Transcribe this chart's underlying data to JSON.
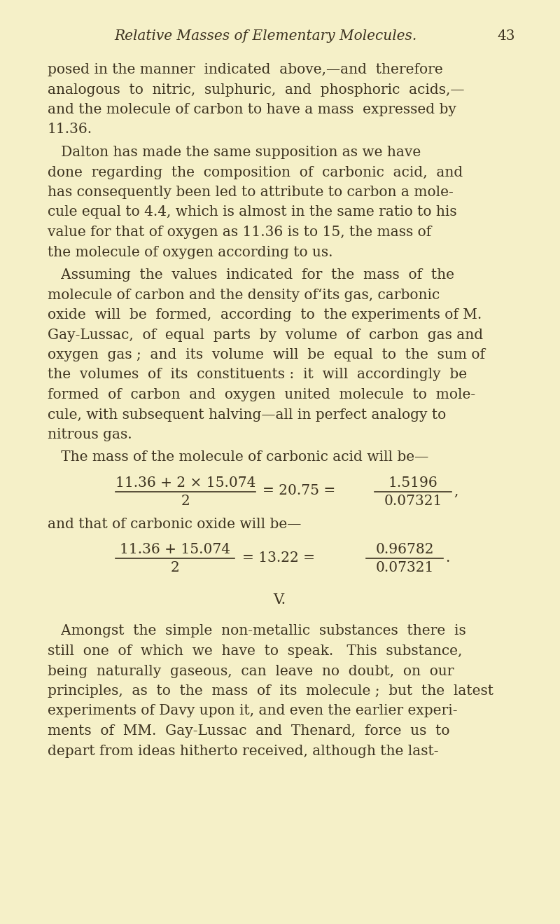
{
  "bg_color": "#f5f0c8",
  "text_color": "#3d3320",
  "page_width": 8.0,
  "page_height": 13.19,
  "dpi": 100,
  "header_italic": "Relative Masses of Elementary Molecules.",
  "header_page_num": "43",
  "body_fontsize": 14.5,
  "header_fontsize": 14.5,
  "formula_fontsize": 14.5,
  "section_fontsize": 15,
  "para1_lines": [
    "posed in the manner  indicated  above,—and  therefore",
    "analogous  to  nitric,  sulphuric,  and  phosphoric  acids,—",
    "and the molecule of carbon to have a mass  expressed by",
    "11.36."
  ],
  "para2_lines": [
    "   Dalton has made the same supposition as we have",
    "done  regarding  the  composition  of  carbonic  acid,  and",
    "has consequently been led to attribute to carbon a mole-",
    "cule equal to 4.4, which is almost in the same ratio to his",
    "value for that of oxygen as 11.36 is to 15, the mass of",
    "the molecule of oxygen according to us."
  ],
  "para3_lines": [
    "   Assuming  the  values  indicated  for  the  mass  of  the",
    "molecule of carbon and the density ofʻits gas, carbonic",
    "oxide  will  be  formed,  according  to  the experiments of M.",
    "Gay-Lussac,  of  equal  parts  by  volume  of  carbon  gas and",
    "oxygen  gas ;  and  its  volume  will  be  equal  to  the  sum of",
    "the  volumes  of  its  constituents :  it  will  accordingly  be",
    "formed  of  carbon  and  oxygen  united  molecule  to  mole-",
    "cule, with subsequent halving—all in perfect analogy to",
    "nitrous gas."
  ],
  "para4_intro": "   The mass of the molecule of carbonic acid will be—",
  "formula1_num": "11.36 + 2 × 15.074",
  "formula1_den": "2",
  "formula1_mid": "= 20.75 =",
  "formula1_rnum": "1.5196",
  "formula1_rden": "0.07321",
  "formula1_end": ",",
  "after_formula1": "and that of carbonic oxide will be—",
  "formula2_num": "11.36 + 15.074",
  "formula2_den": "2",
  "formula2_mid": "= 13.22 =",
  "formula2_rnum": "0.96782",
  "formula2_rden": "0.07321",
  "formula2_end": ".",
  "section_v": "V.",
  "last_para_lines": [
    "   Amongst  the  simple  non-metallic  substances  there  is",
    "still  one  of  which  we  have  to  speak.   This  substance,",
    "being  naturally  gaseous,  can  leave  no  doubt,  on  our",
    "principles,  as  to  the  mass  of  its  molecule ;  but  the  latest",
    "experiments of Davy upon it, and even the earlier experi-",
    "ments  of  MM.  Gay-Lussac  and  Thenard,  force  us  to",
    "depart from ideas hitherto received, although the last-"
  ]
}
